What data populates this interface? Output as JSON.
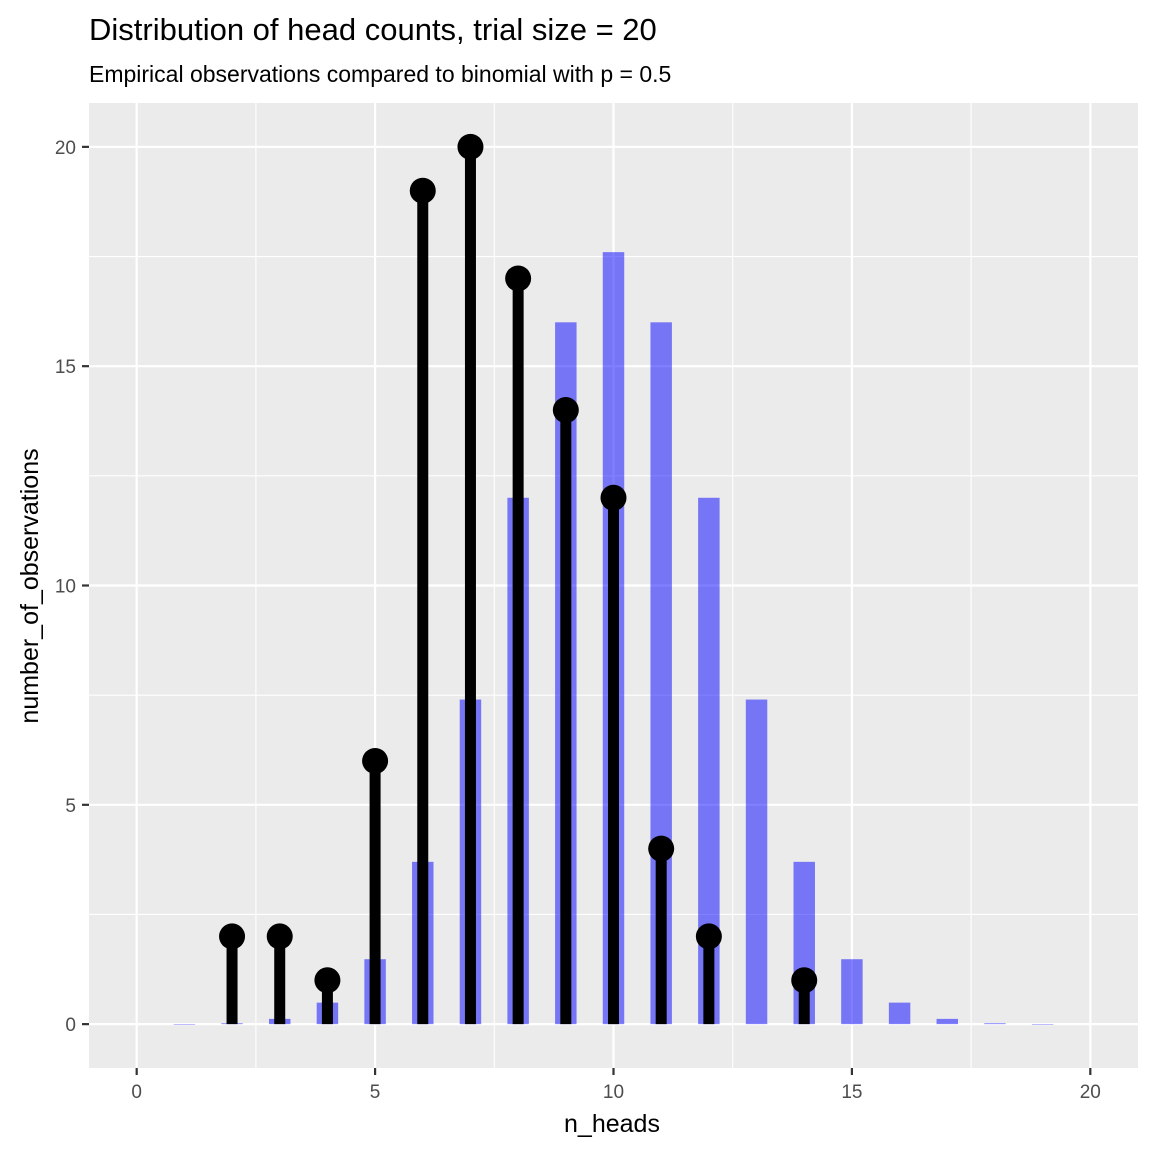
{
  "chart_data": {
    "type": "bar",
    "title": "Distribution of head counts, trial size = 20",
    "subtitle": "Empirical observations compared to binomial with p = 0.5",
    "xlabel": "n_heads",
    "ylabel": "number_of_observations",
    "xlim": [
      -1,
      21
    ],
    "ylim": [
      -1,
      21
    ],
    "x_ticks": [
      0,
      5,
      10,
      15,
      20
    ],
    "y_ticks": [
      0,
      5,
      10,
      15,
      20
    ],
    "grid": true,
    "series": [
      {
        "type": "bar",
        "color": "#0000ff",
        "opacity": 0.5,
        "x": [
          0,
          1,
          2,
          3,
          4,
          5,
          6,
          7,
          8,
          9,
          10,
          11,
          12,
          13,
          14,
          15,
          16,
          17,
          18,
          19,
          20
        ],
        "values": [
          0.0,
          0.002,
          0.02,
          0.12,
          0.49,
          1.48,
          3.7,
          7.4,
          12.0,
          16.0,
          17.6,
          16.0,
          12.0,
          7.4,
          3.7,
          1.48,
          0.49,
          0.12,
          0.02,
          0.002,
          0.0
        ]
      },
      {
        "type": "lollipop",
        "color": "#000000",
        "x": [
          2,
          3,
          4,
          5,
          6,
          7,
          8,
          9,
          10,
          11,
          12,
          14
        ],
        "values": [
          2,
          2,
          1,
          6,
          19,
          20,
          17,
          14,
          12,
          4,
          2,
          1
        ]
      }
    ]
  }
}
